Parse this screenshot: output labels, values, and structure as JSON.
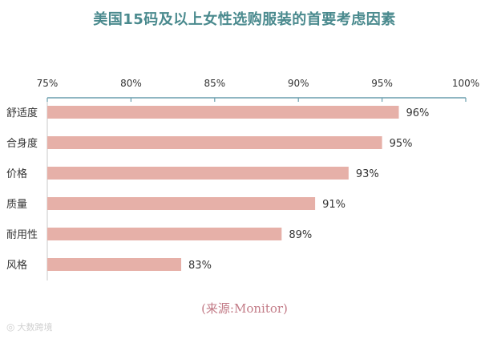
{
  "chart_data": {
    "type": "bar",
    "orientation": "horizontal",
    "title": "美国15码及以上女性选购服装的首要考虑因素",
    "categories": [
      "舒适度",
      "合身度",
      "价格",
      "质量",
      "耐用性",
      "风格"
    ],
    "values": [
      96,
      95,
      93,
      91,
      89,
      83
    ],
    "value_labels": [
      "96%",
      "95%",
      "93%",
      "91%",
      "89%",
      "83%"
    ],
    "xlim": [
      75,
      100
    ],
    "x_ticks": [
      75,
      80,
      85,
      90,
      95,
      100
    ],
    "x_tick_labels": [
      "75%",
      "80%",
      "85%",
      "90%",
      "95%",
      "100%"
    ],
    "axis_position": "top",
    "grid": false,
    "legend": "none",
    "bar_color": "#e6b0a8",
    "axis_color": "#6a9eae"
  },
  "source_text": "(来源:Monitor)",
  "watermark": {
    "icon": "camera-icon",
    "text": "大数跨境"
  },
  "colors": {
    "title": "#4a8a8e",
    "source": "#c27a86"
  }
}
